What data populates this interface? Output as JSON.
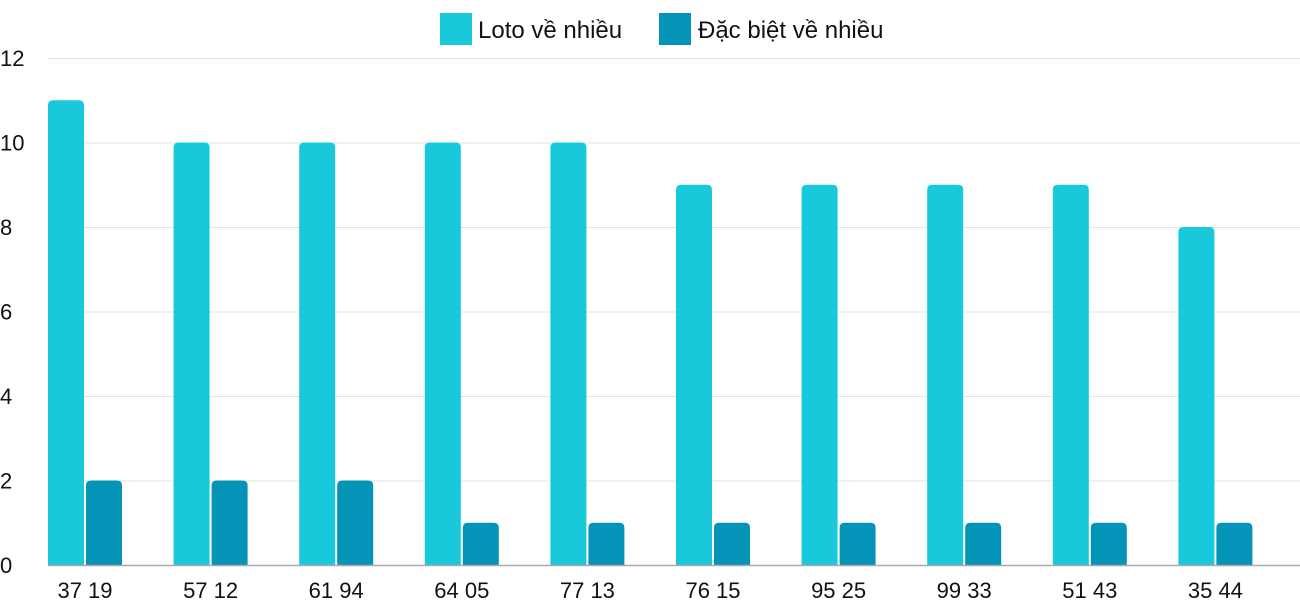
{
  "chart_data": {
    "type": "bar",
    "title": "",
    "xlabel": "",
    "ylabel": "",
    "categories": [
      "37 19",
      "57 12",
      "61 94",
      "64 05",
      "77 13",
      "76 15",
      "95 25",
      "99 33",
      "51 43",
      "35 44"
    ],
    "series": [
      {
        "name": "Loto về nhiều",
        "color": "#1ac8db",
        "values": [
          11,
          10,
          10,
          10,
          10,
          9,
          9,
          9,
          9,
          8
        ]
      },
      {
        "name": "Đặc biệt về nhiều",
        "color": "#0394b8",
        "values": [
          2,
          2,
          2,
          1,
          1,
          1,
          1,
          1,
          1,
          1
        ]
      }
    ],
    "ylim": [
      0,
      12
    ],
    "yticks": [
      0,
      2,
      4,
      6,
      8,
      10,
      12
    ],
    "grid": true,
    "legend_position": "top"
  }
}
